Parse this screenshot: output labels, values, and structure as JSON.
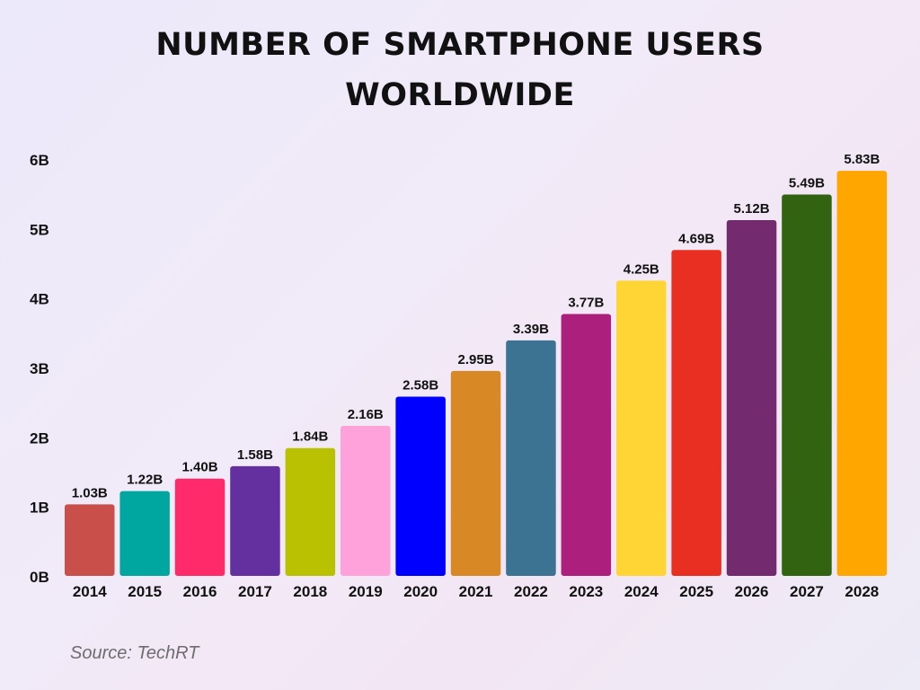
{
  "title_lines": [
    "NUMBER OF SMARTPHONE USERS",
    "WORLDWIDE"
  ],
  "source": "Source: TechRT",
  "chart_data": {
    "type": "bar",
    "title": "NUMBER OF SMARTPHONE USERS WORLDWIDE",
    "xlabel": "",
    "ylabel": "",
    "categories": [
      "2014",
      "2015",
      "2016",
      "2017",
      "2018",
      "2019",
      "2020",
      "2021",
      "2022",
      "2023",
      "2024",
      "2025",
      "2026",
      "2027",
      "2028"
    ],
    "values": [
      1.03,
      1.22,
      1.4,
      1.58,
      1.84,
      2.16,
      2.58,
      2.95,
      3.39,
      3.77,
      4.25,
      4.69,
      5.12,
      5.49,
      5.83
    ],
    "value_labels": [
      "1.03B",
      "1.22B",
      "1.40B",
      "1.58B",
      "1.84B",
      "2.16B",
      "2.58B",
      "2.95B",
      "3.39B",
      "3.77B",
      "4.25B",
      "4.69B",
      "5.12B",
      "5.49B",
      "5.83B"
    ],
    "colors": [
      "#c9504a",
      "#00a6a0",
      "#ff2a6a",
      "#6430a0",
      "#b9c100",
      "#ffa2dc",
      "#0000fe",
      "#d98826",
      "#3c7292",
      "#ac1f7c",
      "#ffd536",
      "#e92f22",
      "#742a6e",
      "#316311",
      "#ffa700"
    ],
    "ylim": [
      0,
      6
    ],
    "yticks": [
      0,
      1,
      2,
      3,
      4,
      5,
      6
    ],
    "ytick_labels": [
      "0B",
      "1B",
      "2B",
      "3B",
      "4B",
      "5B",
      "6B"
    ],
    "grid": false,
    "legend": "none"
  }
}
